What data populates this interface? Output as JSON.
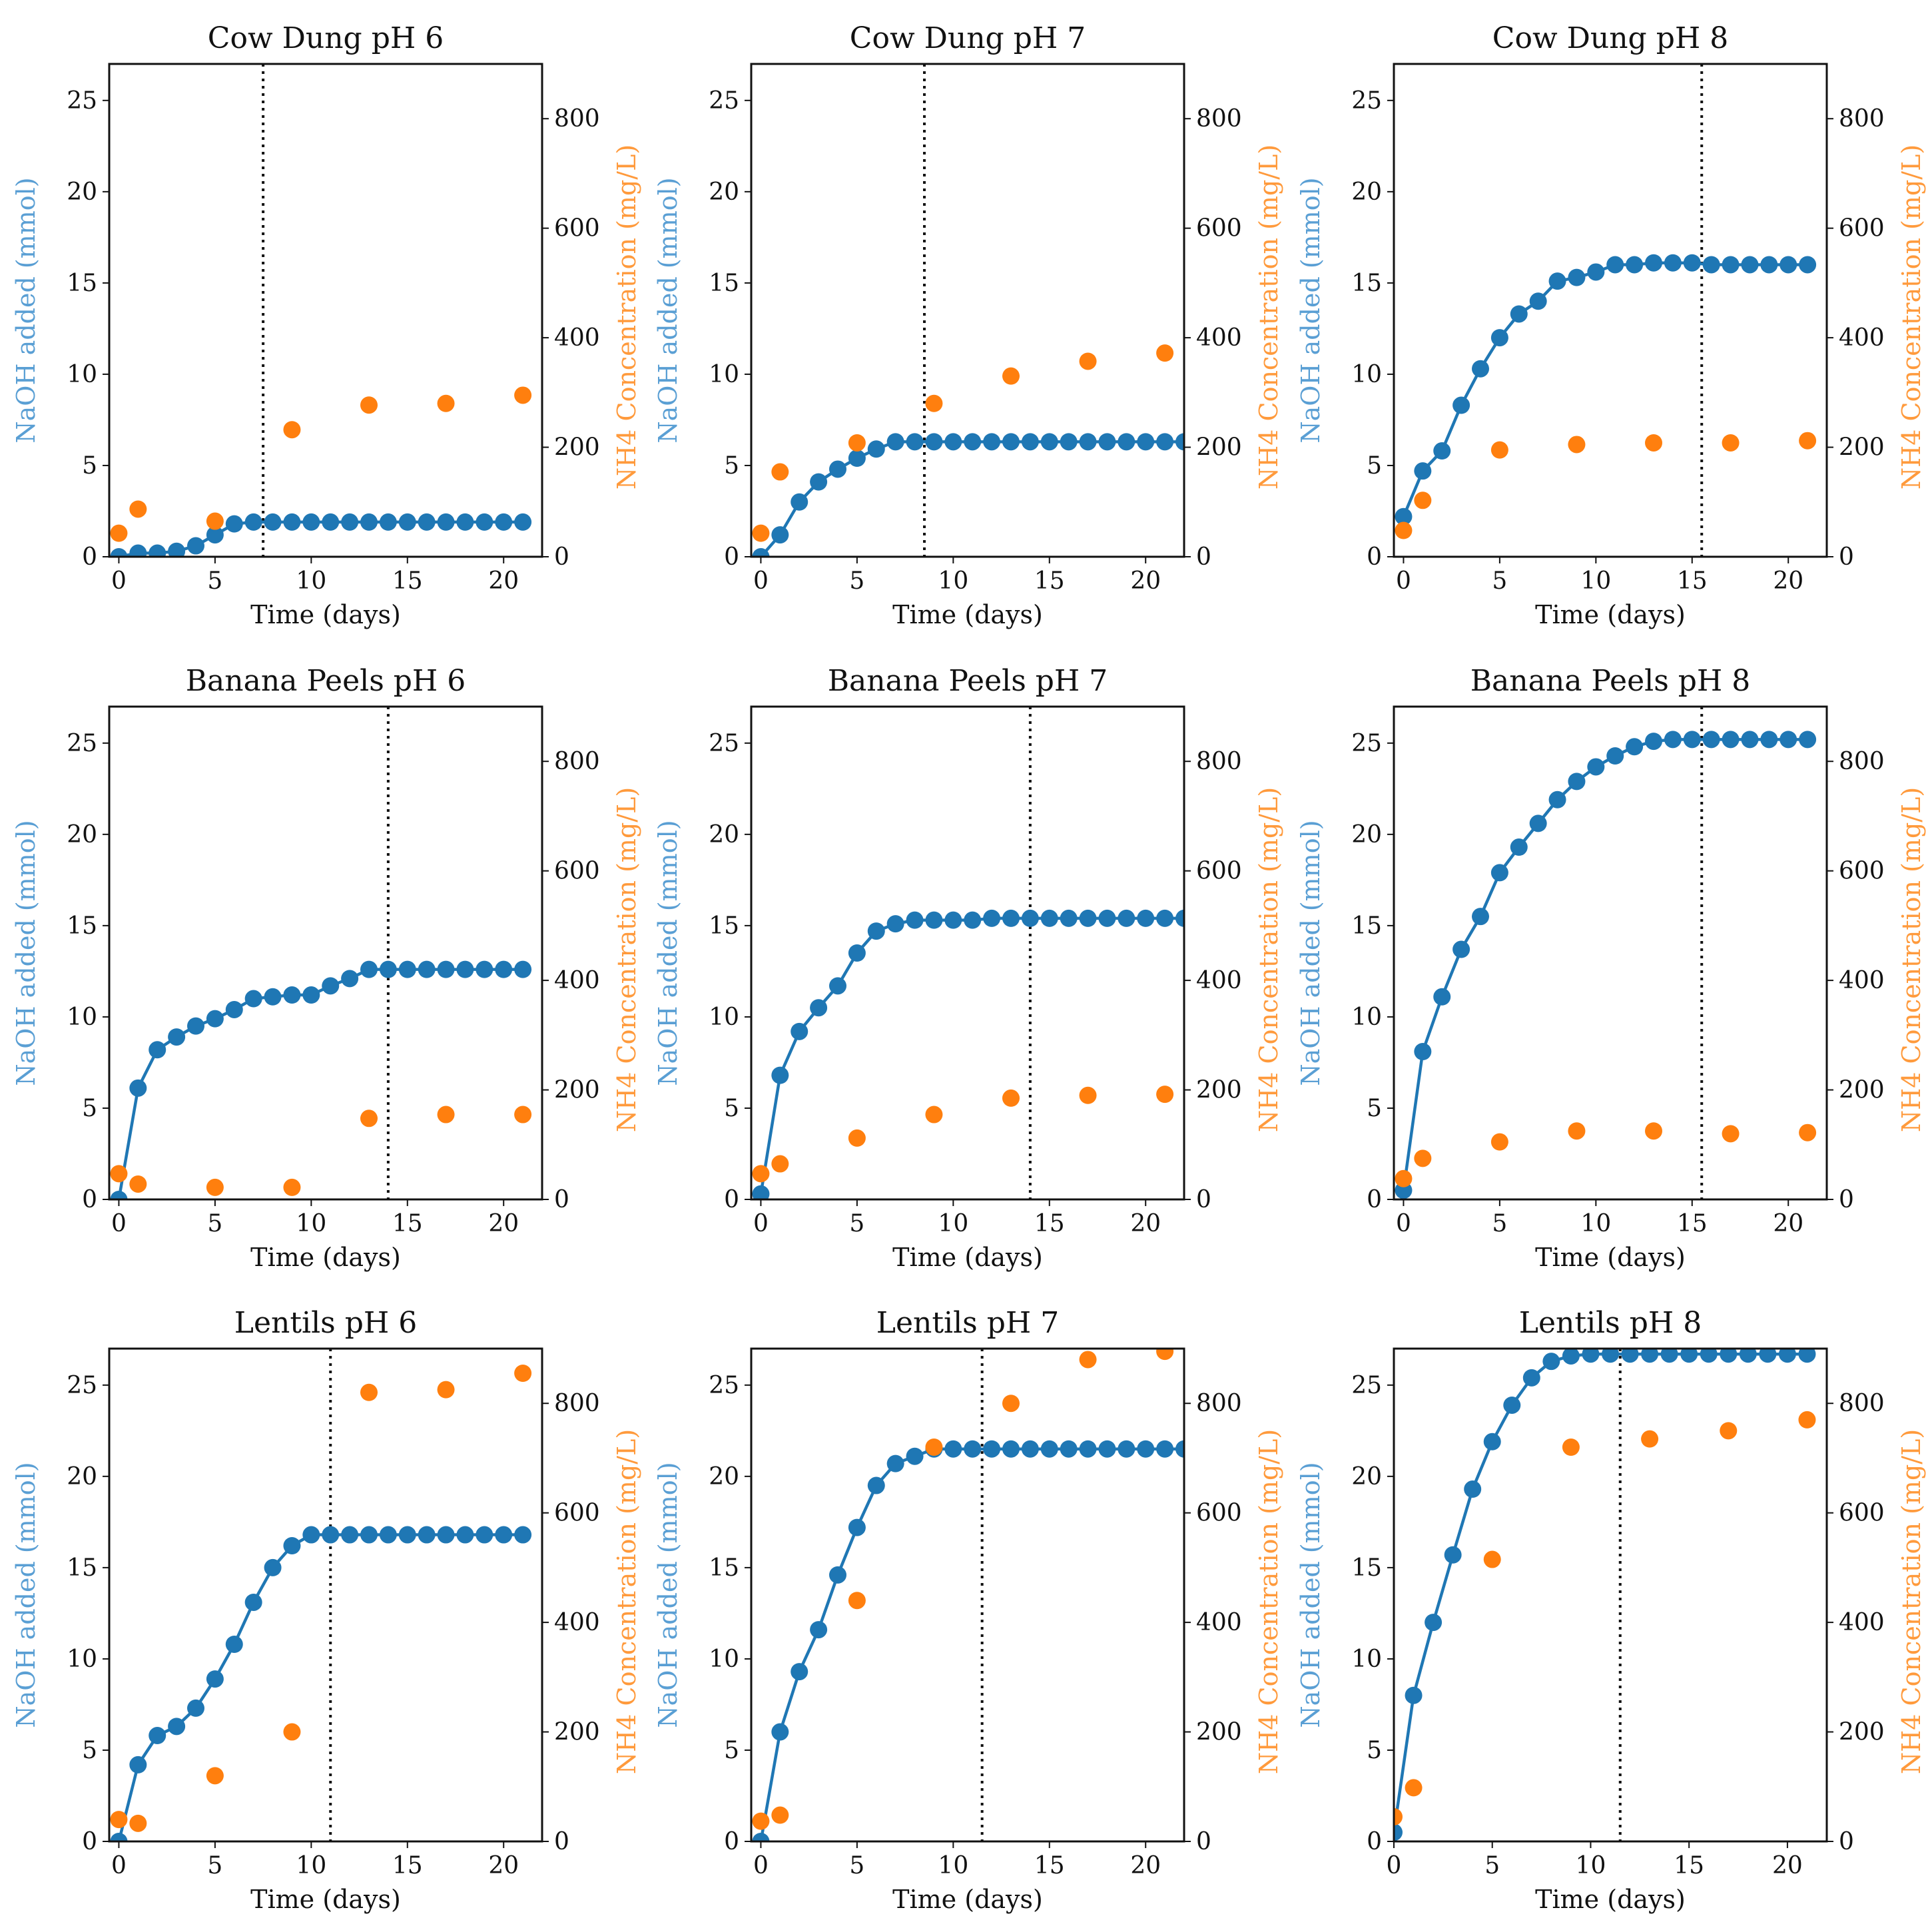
{
  "colors": {
    "naoh": "#1f77b4",
    "nh4": "#ff7f0e",
    "naoh_label": "#5a9fd4",
    "nh4_label": "#ff9a3c",
    "vline": "#111111"
  },
  "chart_data": [
    {
      "type": "line",
      "title": "Cow Dung pH 6",
      "xlabel": "Time (days)",
      "ylabel_left": "NaOH added (mmol)",
      "ylabel_right": "NH4 Concentration (mg/L)",
      "xlim": [
        -0.5,
        22
      ],
      "ylim_left": [
        0,
        27
      ],
      "ylim_right": [
        0,
        900
      ],
      "xticks": [
        0,
        5,
        10,
        15,
        20
      ],
      "yticks_left": [
        0,
        5,
        10,
        15,
        20,
        25
      ],
      "yticks_right": [
        0,
        200,
        400,
        600,
        800
      ],
      "vline": 7.5,
      "naoh": {
        "name": "NaOH added (mmol)",
        "x": [
          0,
          1,
          2,
          3,
          4,
          5,
          6,
          7,
          8,
          9,
          10,
          11,
          12,
          13,
          14,
          15,
          16,
          17,
          18,
          19,
          20,
          21
        ],
        "y": [
          0,
          0.2,
          0.2,
          0.3,
          0.6,
          1.2,
          1.8,
          1.9,
          1.9,
          1.9,
          1.9,
          1.9,
          1.9,
          1.9,
          1.9,
          1.9,
          1.9,
          1.9,
          1.9,
          1.9,
          1.9,
          1.9
        ]
      },
      "nh4": {
        "name": "NH4 Concentration (mg/L)",
        "x": [
          0,
          1,
          5,
          9,
          13,
          17,
          21
        ],
        "y": [
          43,
          87,
          65,
          232,
          277,
          280,
          295
        ]
      }
    },
    {
      "type": "line",
      "title": "Cow Dung pH 7",
      "xlabel": "Time (days)",
      "ylabel_left": "NaOH added (mmol)",
      "ylabel_right": "NH4 Concentration (mg/L)",
      "xlim": [
        -0.5,
        22
      ],
      "ylim_left": [
        0,
        27
      ],
      "ylim_right": [
        0,
        900
      ],
      "xticks": [
        0,
        5,
        10,
        15,
        20
      ],
      "yticks_left": [
        0,
        5,
        10,
        15,
        20,
        25
      ],
      "yticks_right": [
        0,
        200,
        400,
        600,
        800
      ],
      "vline": 8.5,
      "naoh": {
        "name": "NaOH added (mmol)",
        "x": [
          0,
          1,
          2,
          3,
          4,
          5,
          6,
          7,
          8,
          9,
          10,
          11,
          12,
          13,
          14,
          15,
          16,
          17,
          18,
          19,
          20,
          21,
          22
        ],
        "y": [
          0,
          1.2,
          3.0,
          4.1,
          4.8,
          5.4,
          5.9,
          6.3,
          6.3,
          6.3,
          6.3,
          6.3,
          6.3,
          6.3,
          6.3,
          6.3,
          6.3,
          6.3,
          6.3,
          6.3,
          6.3,
          6.3,
          6.3
        ]
      },
      "nh4": {
        "name": "NH4 Concentration (mg/L)",
        "x": [
          0,
          1,
          5,
          9,
          13,
          17,
          21
        ],
        "y": [
          43,
          155,
          208,
          280,
          330,
          357,
          372
        ]
      }
    },
    {
      "type": "line",
      "title": "Cow Dung pH 8",
      "xlabel": "Time (days)",
      "ylabel_left": "NaOH added (mmol)",
      "ylabel_right": "NH4 Concentration (mg/L)",
      "xlim": [
        -0.5,
        22
      ],
      "ylim_left": [
        0,
        27
      ],
      "ylim_right": [
        0,
        900
      ],
      "xticks": [
        0,
        5,
        10,
        15,
        20
      ],
      "yticks_left": [
        0,
        5,
        10,
        15,
        20,
        25
      ],
      "yticks_right": [
        0,
        200,
        400,
        600,
        800
      ],
      "vline": 15.5,
      "naoh": {
        "name": "NaOH added (mmol)",
        "x": [
          0,
          1,
          2,
          3,
          4,
          5,
          6,
          7,
          8,
          9,
          10,
          11,
          12,
          13,
          14,
          15,
          16,
          17,
          18,
          19,
          20,
          21
        ],
        "y": [
          2.2,
          4.7,
          5.8,
          8.3,
          10.3,
          12.0,
          13.3,
          14.0,
          15.1,
          15.3,
          15.6,
          16.0,
          16.0,
          16.1,
          16.1,
          16.1,
          16.0,
          16.0,
          16.0,
          16.0,
          16.0,
          16.0
        ]
      },
      "nh4": {
        "name": "NH4 Concentration (mg/L)",
        "x": [
          0,
          1,
          5,
          9,
          13,
          17,
          21
        ],
        "y": [
          48,
          103,
          195,
          205,
          208,
          208,
          212
        ]
      }
    },
    {
      "type": "line",
      "title": "Banana Peels pH 6",
      "xlabel": "Time (days)",
      "ylabel_left": "NaOH added (mmol)",
      "ylabel_right": "NH4 Concentration (mg/L)",
      "xlim": [
        -0.5,
        22
      ],
      "ylim_left": [
        0,
        27
      ],
      "ylim_right": [
        0,
        900
      ],
      "xticks": [
        0,
        5,
        10,
        15,
        20
      ],
      "yticks_left": [
        0,
        5,
        10,
        15,
        20,
        25
      ],
      "yticks_right": [
        0,
        200,
        400,
        600,
        800
      ],
      "vline": 14,
      "naoh": {
        "name": "NaOH added (mmol)",
        "x": [
          0,
          1,
          2,
          3,
          4,
          5,
          6,
          7,
          8,
          9,
          10,
          11,
          12,
          13,
          14,
          15,
          16,
          17,
          18,
          19,
          20,
          21
        ],
        "y": [
          0,
          6.1,
          8.2,
          8.9,
          9.5,
          9.9,
          10.4,
          11.0,
          11.1,
          11.2,
          11.2,
          11.7,
          12.1,
          12.6,
          12.6,
          12.6,
          12.6,
          12.6,
          12.6,
          12.6,
          12.6,
          12.6
        ]
      },
      "nh4": {
        "name": "NH4 Concentration (mg/L)",
        "x": [
          0,
          1,
          5,
          9,
          13,
          17,
          21
        ],
        "y": [
          47,
          28,
          22,
          22,
          148,
          155,
          155
        ]
      }
    },
    {
      "type": "line",
      "title": "Banana Peels pH 7",
      "xlabel": "Time (days)",
      "ylabel_left": "NaOH added (mmol)",
      "ylabel_right": "NH4 Concentration (mg/L)",
      "xlim": [
        -0.5,
        22
      ],
      "ylim_left": [
        0,
        27
      ],
      "ylim_right": [
        0,
        900
      ],
      "xticks": [
        0,
        5,
        10,
        15,
        20
      ],
      "yticks_left": [
        0,
        5,
        10,
        15,
        20,
        25
      ],
      "yticks_right": [
        0,
        200,
        400,
        600,
        800
      ],
      "vline": 14,
      "naoh": {
        "name": "NaOH added (mmol)",
        "x": [
          0,
          1,
          2,
          3,
          4,
          5,
          6,
          7,
          8,
          9,
          10,
          11,
          12,
          13,
          14,
          15,
          16,
          17,
          18,
          19,
          20,
          21,
          22
        ],
        "y": [
          0.3,
          6.8,
          9.2,
          10.5,
          11.7,
          13.5,
          14.7,
          15.1,
          15.3,
          15.3,
          15.3,
          15.3,
          15.4,
          15.4,
          15.4,
          15.4,
          15.4,
          15.4,
          15.4,
          15.4,
          15.4,
          15.4,
          15.4
        ]
      },
      "nh4": {
        "name": "NH4 Concentration (mg/L)",
        "x": [
          0,
          1,
          5,
          9,
          13,
          17,
          21
        ],
        "y": [
          47,
          65,
          112,
          155,
          185,
          190,
          192
        ]
      }
    },
    {
      "type": "line",
      "title": "Banana Peels pH 8",
      "xlabel": "Time (days)",
      "ylabel_left": "NaOH added (mmol)",
      "ylabel_right": "NH4 Concentration (mg/L)",
      "xlim": [
        -0.5,
        22
      ],
      "ylim_left": [
        0,
        27
      ],
      "ylim_right": [
        0,
        900
      ],
      "xticks": [
        0,
        5,
        10,
        15,
        20
      ],
      "yticks_left": [
        0,
        5,
        10,
        15,
        20,
        25
      ],
      "yticks_right": [
        0,
        200,
        400,
        600,
        800
      ],
      "vline": 15.5,
      "naoh": {
        "name": "NaOH added (mmol)",
        "x": [
          0,
          1,
          2,
          3,
          4,
          5,
          6,
          7,
          8,
          9,
          10,
          11,
          12,
          13,
          14,
          15,
          16,
          17,
          18,
          19,
          20,
          21
        ],
        "y": [
          0.5,
          8.1,
          11.1,
          13.7,
          15.5,
          17.9,
          19.3,
          20.6,
          21.9,
          22.9,
          23.7,
          24.3,
          24.8,
          25.1,
          25.2,
          25.2,
          25.2,
          25.2,
          25.2,
          25.2,
          25.2,
          25.2
        ]
      },
      "nh4": {
        "name": "NH4 Concentration (mg/L)",
        "x": [
          0,
          1,
          5,
          9,
          13,
          17,
          21
        ],
        "y": [
          38,
          75,
          105,
          125,
          125,
          120,
          122
        ]
      }
    },
    {
      "type": "line",
      "title": "Lentils pH 6",
      "xlabel": "Time (days)",
      "ylabel_left": "NaOH added (mmol)",
      "ylabel_right": "NH4 Concentration (mg/L)",
      "xlim": [
        -0.5,
        22
      ],
      "ylim_left": [
        0,
        27
      ],
      "ylim_right": [
        0,
        900
      ],
      "xticks": [
        0,
        5,
        10,
        15,
        20
      ],
      "yticks_left": [
        0,
        5,
        10,
        15,
        20,
        25
      ],
      "yticks_right": [
        0,
        200,
        400,
        600,
        800
      ],
      "vline": 11,
      "naoh": {
        "name": "NaOH added (mmol)",
        "x": [
          0,
          1,
          2,
          3,
          4,
          5,
          6,
          7,
          8,
          9,
          10,
          11,
          12,
          13,
          14,
          15,
          16,
          17,
          18,
          19,
          20,
          21
        ],
        "y": [
          0,
          4.2,
          5.8,
          6.3,
          7.3,
          8.9,
          10.8,
          13.1,
          15.0,
          16.2,
          16.8,
          16.8,
          16.8,
          16.8,
          16.8,
          16.8,
          16.8,
          16.8,
          16.8,
          16.8,
          16.8,
          16.8
        ]
      },
      "nh4": {
        "name": "NH4 Concentration (mg/L)",
        "x": [
          0,
          1,
          5,
          9,
          13,
          17,
          21
        ],
        "y": [
          40,
          33,
          120,
          200,
          820,
          825,
          855
        ]
      }
    },
    {
      "type": "line",
      "title": "Lentils pH 7",
      "xlabel": "Time (days)",
      "ylabel_left": "NaOH added (mmol)",
      "ylabel_right": "NH4 Concentration (mg/L)",
      "xlim": [
        -0.5,
        22
      ],
      "ylim_left": [
        0,
        27
      ],
      "ylim_right": [
        0,
        900
      ],
      "xticks": [
        0,
        5,
        10,
        15,
        20
      ],
      "yticks_left": [
        0,
        5,
        10,
        15,
        20,
        25
      ],
      "yticks_right": [
        0,
        200,
        400,
        600,
        800
      ],
      "vline": 11.5,
      "naoh": {
        "name": "NaOH added (mmol)",
        "x": [
          0,
          1,
          2,
          3,
          4,
          5,
          6,
          7,
          8,
          9,
          10,
          11,
          12,
          13,
          14,
          15,
          16,
          17,
          18,
          19,
          20,
          21,
          22
        ],
        "y": [
          0,
          6.0,
          9.3,
          11.6,
          14.6,
          17.2,
          19.5,
          20.7,
          21.1,
          21.5,
          21.5,
          21.5,
          21.5,
          21.5,
          21.5,
          21.5,
          21.5,
          21.5,
          21.5,
          21.5,
          21.5,
          21.5,
          21.5
        ]
      },
      "nh4": {
        "name": "NH4 Concentration (mg/L)",
        "x": [
          0,
          1,
          5,
          9,
          13,
          17,
          21
        ],
        "y": [
          37,
          48,
          440,
          720,
          800,
          880,
          895
        ]
      }
    },
    {
      "type": "line",
      "title": "Lentils pH 8",
      "xlabel": "Time (days)",
      "ylabel_left": "NaOH added (mmol)",
      "ylabel_right": "NH4 Concentration (mg/L)",
      "xlim": [
        0,
        22
      ],
      "ylim_left": [
        0,
        27
      ],
      "ylim_right": [
        0,
        900
      ],
      "xticks": [
        0,
        5,
        10,
        15,
        20
      ],
      "yticks_left": [
        0,
        5,
        10,
        15,
        20,
        25
      ],
      "yticks_right": [
        0,
        200,
        400,
        600,
        800
      ],
      "vline": 11.5,
      "naoh": {
        "name": "NaOH added (mmol)",
        "x": [
          0,
          1,
          2,
          3,
          4,
          5,
          6,
          7,
          8,
          9,
          10,
          11,
          12,
          13,
          14,
          15,
          16,
          17,
          18,
          19,
          20,
          21
        ],
        "y": [
          0.5,
          8.0,
          12.0,
          15.7,
          19.3,
          21.9,
          23.9,
          25.4,
          26.3,
          26.6,
          26.7,
          26.7,
          26.7,
          26.7,
          26.7,
          26.7,
          26.7,
          26.7,
          26.7,
          26.7,
          26.7,
          26.7
        ]
      },
      "nh4": {
        "name": "NH4 Concentration (mg/L)",
        "x": [
          0,
          1,
          5,
          9,
          13,
          17,
          21
        ],
        "y": [
          45,
          98,
          515,
          720,
          735,
          750,
          770
        ]
      }
    }
  ]
}
